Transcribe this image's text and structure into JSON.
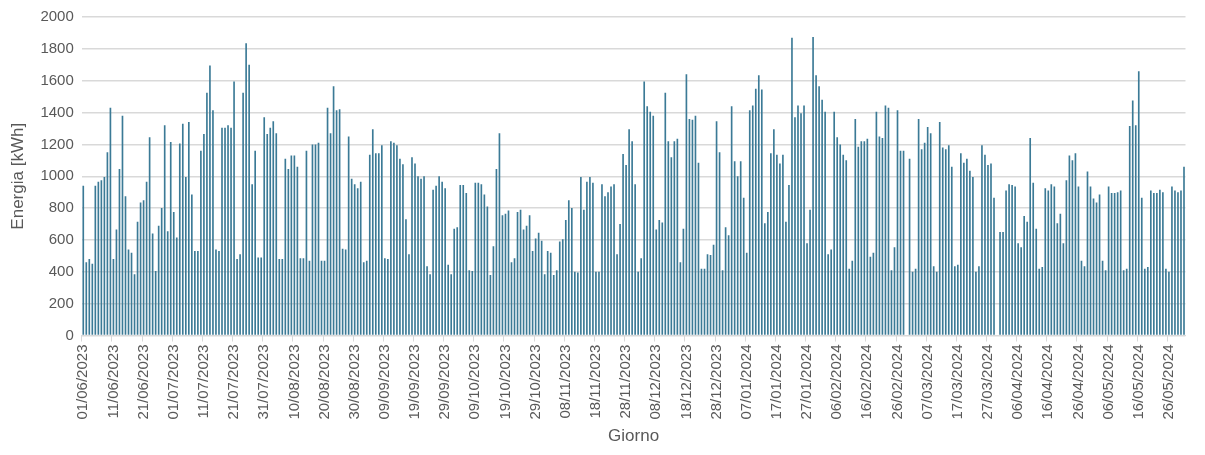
{
  "chart_data": {
    "type": "bar",
    "xlabel": "Giorno",
    "ylabel": "Energia [kWh]",
    "color": "#3b7a96",
    "grid": "y",
    "ylim": [
      0,
      2000
    ],
    "yticks": [
      0,
      200,
      400,
      600,
      800,
      1000,
      1200,
      1400,
      1600,
      1800,
      2000
    ],
    "categories": [
      "01/06/2023",
      null,
      null,
      null,
      null,
      null,
      null,
      null,
      null,
      null,
      "11/06/2023",
      null,
      null,
      null,
      null,
      null,
      null,
      null,
      null,
      null,
      "21/06/2023",
      null,
      null,
      null,
      null,
      null,
      null,
      null,
      null,
      null,
      "01/07/2023",
      null,
      null,
      null,
      null,
      null,
      null,
      null,
      null,
      null,
      "11/07/2023",
      null,
      null,
      null,
      null,
      null,
      null,
      null,
      null,
      null,
      "21/07/2023",
      null,
      null,
      null,
      null,
      null,
      null,
      null,
      null,
      null,
      "31/07/2023",
      null,
      null,
      null,
      null,
      null,
      null,
      null,
      null,
      null,
      "10/08/2023",
      null,
      null,
      null,
      null,
      null,
      null,
      null,
      null,
      null,
      "20/08/2023",
      null,
      null,
      null,
      null,
      null,
      null,
      null,
      null,
      null,
      "30/08/2023",
      null,
      null,
      null,
      null,
      null,
      null,
      null,
      null,
      null,
      "09/09/2023",
      null,
      null,
      null,
      null,
      null,
      null,
      null,
      null,
      null,
      "19/09/2023",
      null,
      null,
      null,
      null,
      null,
      null,
      null,
      null,
      null,
      "29/09/2023",
      null,
      null,
      null,
      null,
      null,
      null,
      null,
      null,
      null,
      "09/10/2023",
      null,
      null,
      null,
      null,
      null,
      null,
      null,
      null,
      null,
      "19/10/2023",
      null,
      null,
      null,
      null,
      null,
      null,
      null,
      null,
      null,
      "29/10/2023",
      null,
      null,
      null,
      null,
      null,
      null,
      null,
      null,
      null,
      "08/11/2023",
      null,
      null,
      null,
      null,
      null,
      null,
      null,
      null,
      null,
      "18/11/2023",
      null,
      null,
      null,
      null,
      null,
      null,
      null,
      null,
      null,
      "28/11/2023",
      null,
      null,
      null,
      null,
      null,
      null,
      null,
      null,
      null,
      "08/12/2023",
      null,
      null,
      null,
      null,
      null,
      null,
      null,
      null,
      null,
      "18/12/2023",
      null,
      null,
      null,
      null,
      null,
      null,
      null,
      null,
      null,
      "28/12/2023",
      null,
      null,
      null,
      null,
      null,
      null,
      null,
      null,
      null,
      "07/01/2024",
      null,
      null,
      null,
      null,
      null,
      null,
      null,
      null,
      null,
      "17/01/2024",
      null,
      null,
      null,
      null,
      null,
      null,
      null,
      null,
      null,
      "27/01/2024",
      null,
      null,
      null,
      null,
      null,
      null,
      null,
      null,
      null,
      "06/02/2024",
      null,
      null,
      null,
      null,
      null,
      null,
      null,
      null,
      null,
      "16/02/2024",
      null,
      null,
      null,
      null,
      null,
      null,
      null,
      null,
      null,
      "26/02/2024",
      null,
      null,
      null,
      null,
      null,
      null,
      null,
      null,
      null,
      "07/03/2024",
      null,
      null,
      null,
      null,
      null,
      null,
      null,
      null,
      null,
      "17/03/2024",
      null,
      null,
      null,
      null,
      null,
      null,
      null,
      null,
      null,
      "27/03/2024",
      null,
      null,
      null,
      null,
      null,
      null,
      null,
      null,
      null,
      "06/04/2024",
      null,
      null,
      null,
      null,
      null,
      null,
      null,
      null,
      null,
      "16/04/2024",
      null,
      null,
      null,
      null,
      null,
      null,
      null,
      null,
      null,
      "26/04/2024",
      null,
      null,
      null,
      null,
      null,
      null,
      null,
      null,
      null,
      "06/05/2024",
      null,
      null,
      null,
      null,
      null,
      null,
      null,
      null,
      null,
      "16/05/2024",
      null,
      null,
      null,
      null,
      null,
      null,
      null,
      null,
      null,
      "26/05/2024",
      null,
      null,
      null,
      null,
      null
    ],
    "values": [
      940,
      460,
      480,
      450,
      940,
      965,
      975,
      995,
      1150,
      1430,
      480,
      665,
      1045,
      1380,
      875,
      540,
      520,
      385,
      715,
      835,
      850,
      965,
      1245,
      640,
      405,
      690,
      800,
      1320,
      655,
      1215,
      775,
      615,
      1205,
      1330,
      995,
      1340,
      885,
      530,
      530,
      1160,
      1265,
      1525,
      1695,
      1415,
      540,
      530,
      1305,
      1305,
      1320,
      1305,
      1595,
      480,
      510,
      1525,
      1835,
      1700,
      950,
      1160,
      490,
      490,
      1370,
      1265,
      1305,
      1345,
      1270,
      480,
      480,
      1110,
      1045,
      1130,
      1130,
      1060,
      485,
      485,
      1160,
      470,
      1200,
      1200,
      1210,
      470,
      470,
      1430,
      1270,
      1565,
      1415,
      1420,
      545,
      540,
      1250,
      985,
      950,
      925,
      965,
      460,
      470,
      1135,
      1295,
      1145,
      1145,
      1195,
      485,
      480,
      1220,
      1210,
      1195,
      1110,
      1075,
      730,
      510,
      1120,
      1080,
      1000,
      985,
      1000,
      435,
      385,
      915,
      940,
      1000,
      965,
      925,
      445,
      385,
      670,
      680,
      945,
      945,
      895,
      410,
      405,
      960,
      960,
      950,
      885,
      810,
      380,
      560,
      1045,
      1270,
      755,
      765,
      785,
      460,
      485,
      775,
      790,
      665,
      690,
      755,
      530,
      610,
      645,
      595,
      385,
      530,
      520,
      380,
      410,
      590,
      605,
      725,
      850,
      800,
      400,
      395,
      995,
      790,
      965,
      995,
      960,
      400,
      400,
      950,
      875,
      900,
      935,
      950,
      510,
      700,
      1140,
      1070,
      1295,
      1220,
      950,
      400,
      485,
      1595,
      1440,
      1405,
      1380,
      665,
      725,
      710,
      1525,
      1220,
      1120,
      1220,
      1235,
      460,
      670,
      1640,
      1360,
      1355,
      1380,
      1085,
      420,
      420,
      510,
      505,
      570,
      1345,
      1150,
      410,
      680,
      630,
      1440,
      1095,
      1000,
      1095,
      865,
      520,
      1415,
      1445,
      1550,
      1635,
      1545,
      705,
      775,
      1145,
      1295,
      1135,
      1080,
      1135,
      715,
      945,
      1870,
      1370,
      1445,
      1395,
      1445,
      580,
      790,
      1875,
      1635,
      1565,
      1480,
      1405,
      510,
      540,
      1405,
      1245,
      1200,
      1135,
      1100,
      420,
      470,
      1360,
      1185,
      1220,
      1220,
      1235,
      495,
      520,
      1405,
      1250,
      1240,
      1445,
      1430,
      410,
      555,
      1415,
      1160,
      1160,
      null,
      1110,
      400,
      420,
      1360,
      1170,
      1210,
      1310,
      1270,
      435,
      400,
      1340,
      1180,
      1170,
      1195,
      1060,
      435,
      445,
      1145,
      1085,
      1110,
      1035,
      995,
      400,
      435,
      1195,
      1135,
      1070,
      1080,
      865,
      null,
      650,
      650,
      910,
      950,
      945,
      935,
      580,
      555,
      750,
      715,
      1240,
      960,
      670,
      420,
      430,
      925,
      910,
      950,
      935,
      705,
      765,
      580,
      975,
      1130,
      1100,
      1145,
      935,
      470,
      435,
      1030,
      935,
      860,
      835,
      885,
      470,
      410,
      935,
      895,
      895,
      900,
      910,
      410,
      420,
      1315,
      1475,
      1320,
      1660,
      865,
      420,
      430,
      910,
      895,
      895,
      915,
      900,
      420,
      400,
      935,
      910,
      900,
      910,
      1060
    ]
  }
}
